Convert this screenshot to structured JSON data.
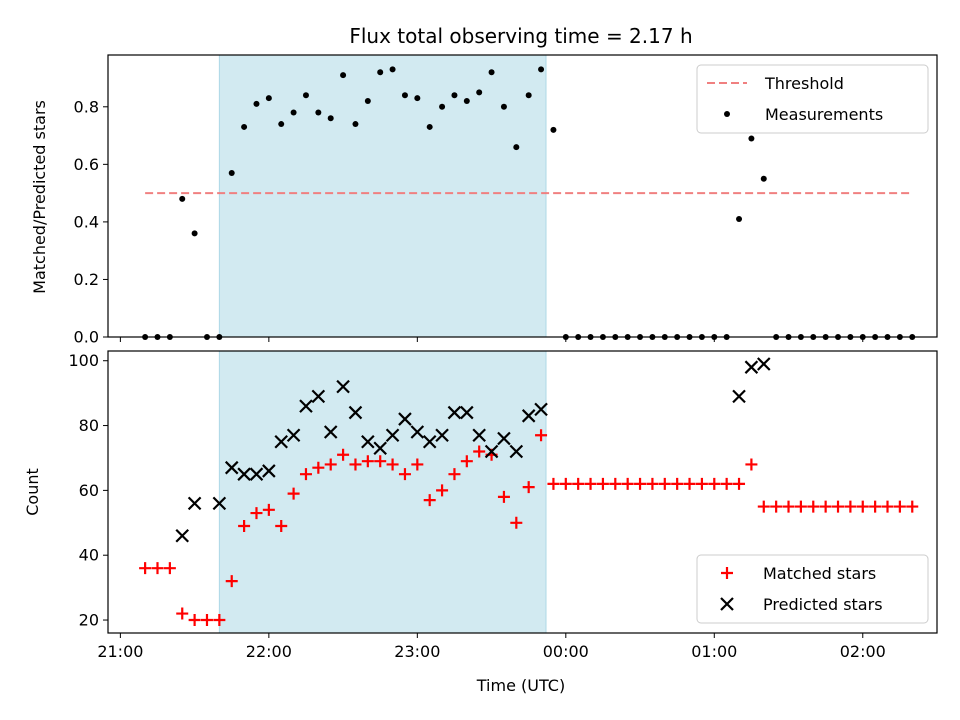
{
  "colors": {
    "threshold": "#f08080",
    "measurements": "#000000",
    "matched": "#ff0000",
    "predicted": "#000000",
    "span": "#add8e6"
  },
  "chart_data": [
    {
      "type": "scatter",
      "title": "Flux total observing time = 2.17 h",
      "xlabel": "",
      "ylabel": "Matched/Predicted stars",
      "ylim": [
        0,
        0.98
      ],
      "yticks": [
        "0.0",
        "0.2",
        "0.4",
        "0.6",
        "0.8"
      ],
      "yticks_values": [
        0,
        0.2,
        0.4,
        0.6,
        0.8
      ],
      "xlim_minutes": [
        1255,
        1590
      ],
      "span_minutes": [
        1300,
        1432
      ],
      "legend_position": "top-right",
      "threshold": {
        "name": "Threshold",
        "value": 0.5,
        "x_minutes": [
          1270,
          1580
        ]
      },
      "series": [
        {
          "name": "Measurements",
          "x_minutes": [
            1270,
            1275,
            1280,
            1285,
            1290,
            1295,
            1300,
            1305,
            1310,
            1315,
            1320,
            1325,
            1330,
            1335,
            1340,
            1345,
            1350,
            1355,
            1360,
            1365,
            1370,
            1375,
            1380,
            1385,
            1390,
            1395,
            1400,
            1405,
            1410,
            1415,
            1420,
            1425,
            1430,
            1435,
            1440,
            1445,
            1450,
            1455,
            1460,
            1465,
            1470,
            1475,
            1480,
            1485,
            1490,
            1495,
            1500,
            1505,
            1510,
            1515,
            1520,
            1525,
            1530,
            1535,
            1540,
            1545,
            1550,
            1555,
            1560,
            1565,
            1570,
            1575,
            1580
          ],
          "y": [
            0,
            0,
            0,
            0.48,
            0.36,
            0,
            0,
            0.57,
            0.73,
            0.81,
            0.83,
            0.74,
            0.78,
            0.84,
            0.78,
            0.76,
            0.91,
            0.74,
            0.82,
            0.92,
            0.93,
            0.84,
            0.83,
            0.73,
            0.8,
            0.84,
            0.82,
            0.85,
            0.92,
            0.8,
            0.66,
            0.84,
            0.93,
            0.72,
            0,
            0,
            0,
            0,
            0,
            0,
            0,
            0,
            0,
            0,
            0,
            0,
            0,
            0,
            0.41,
            0.69,
            0.55,
            0,
            0,
            0,
            0,
            0,
            0,
            0,
            0,
            0,
            0,
            0,
            0
          ]
        }
      ]
    },
    {
      "type": "scatter",
      "xlabel": "Time (UTC)",
      "ylabel": "Count",
      "ylim": [
        16,
        103
      ],
      "yticks": [
        "20",
        "40",
        "60",
        "80",
        "100"
      ],
      "yticks_values": [
        20,
        40,
        60,
        80,
        100
      ],
      "xlim_minutes": [
        1255,
        1590
      ],
      "span_minutes": [
        1300,
        1432
      ],
      "xticks": [
        "21:00",
        "22:00",
        "23:00",
        "00:00",
        "01:00",
        "02:00"
      ],
      "xticks_minutes": [
        1260,
        1320,
        1380,
        1440,
        1500,
        1560
      ],
      "legend_position": "bottom-right",
      "series": [
        {
          "name": "Matched stars",
          "marker": "plus",
          "x_minutes": [
            1270,
            1275,
            1280,
            1285,
            1290,
            1295,
            1300,
            1305,
            1310,
            1315,
            1320,
            1325,
            1330,
            1335,
            1340,
            1345,
            1350,
            1355,
            1360,
            1365,
            1370,
            1375,
            1380,
            1385,
            1390,
            1395,
            1400,
            1405,
            1410,
            1415,
            1420,
            1425,
            1430,
            1435,
            1440,
            1445,
            1450,
            1455,
            1460,
            1465,
            1470,
            1475,
            1480,
            1485,
            1490,
            1495,
            1500,
            1505,
            1510,
            1515,
            1520,
            1525,
            1530,
            1535,
            1540,
            1545,
            1550,
            1555,
            1560,
            1565,
            1570,
            1575,
            1580
          ],
          "y": [
            36,
            36,
            36,
            22,
            20,
            20,
            20,
            32,
            49,
            53,
            54,
            49,
            59,
            65,
            67,
            68,
            71,
            68,
            69,
            69,
            68,
            65,
            68,
            57,
            60,
            65,
            69,
            72,
            71,
            58,
            50,
            61,
            77,
            62,
            62,
            62,
            62,
            62,
            62,
            62,
            62,
            62,
            62,
            62,
            62,
            62,
            62,
            62,
            62,
            68,
            55,
            55,
            55,
            55,
            55,
            55,
            55,
            55,
            55,
            55,
            55,
            55,
            55
          ]
        },
        {
          "name": "Predicted stars",
          "marker": "x",
          "x_minutes": [
            1285,
            1290,
            1300,
            1305,
            1310,
            1315,
            1320,
            1325,
            1330,
            1335,
            1340,
            1345,
            1350,
            1355,
            1360,
            1365,
            1370,
            1375,
            1380,
            1385,
            1390,
            1395,
            1400,
            1405,
            1410,
            1415,
            1420,
            1425,
            1430,
            1435,
            1510,
            1515,
            1520
          ],
          "y": [
            46,
            56,
            56,
            67,
            65,
            65,
            66,
            75,
            77,
            86,
            89,
            78,
            92,
            84,
            75,
            73,
            77,
            82,
            78,
            75,
            77,
            84,
            84,
            77,
            72,
            76,
            72,
            83,
            85,
            null,
            89,
            98,
            99
          ]
        }
      ]
    }
  ]
}
